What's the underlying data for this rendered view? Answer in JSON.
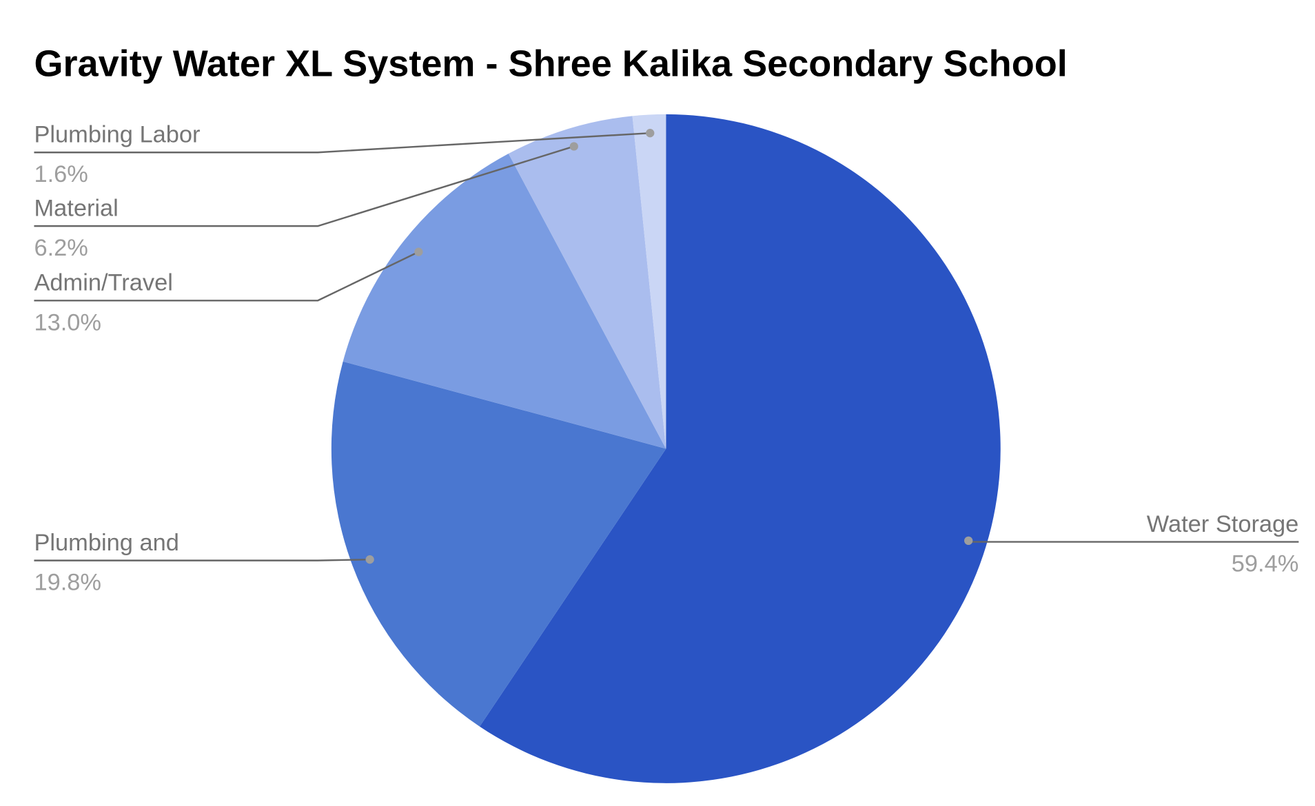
{
  "chart_data": {
    "type": "pie",
    "title": "Gravity Water XL System - Shree Kalika Secondary School",
    "categories": [
      "Water Storage",
      "Plumbing and",
      "Admin/Travel",
      "Material",
      "Plumbing Labor"
    ],
    "values": [
      59.4,
      19.8,
      13.0,
      6.2,
      1.6
    ],
    "value_labels": [
      "59.4%",
      "19.8%",
      "13.0%",
      "6.2%",
      "1.6%"
    ],
    "colors": [
      "#2a54c4",
      "#4a77d0",
      "#7a9ce2",
      "#aabdee",
      "#cad6f5"
    ]
  }
}
